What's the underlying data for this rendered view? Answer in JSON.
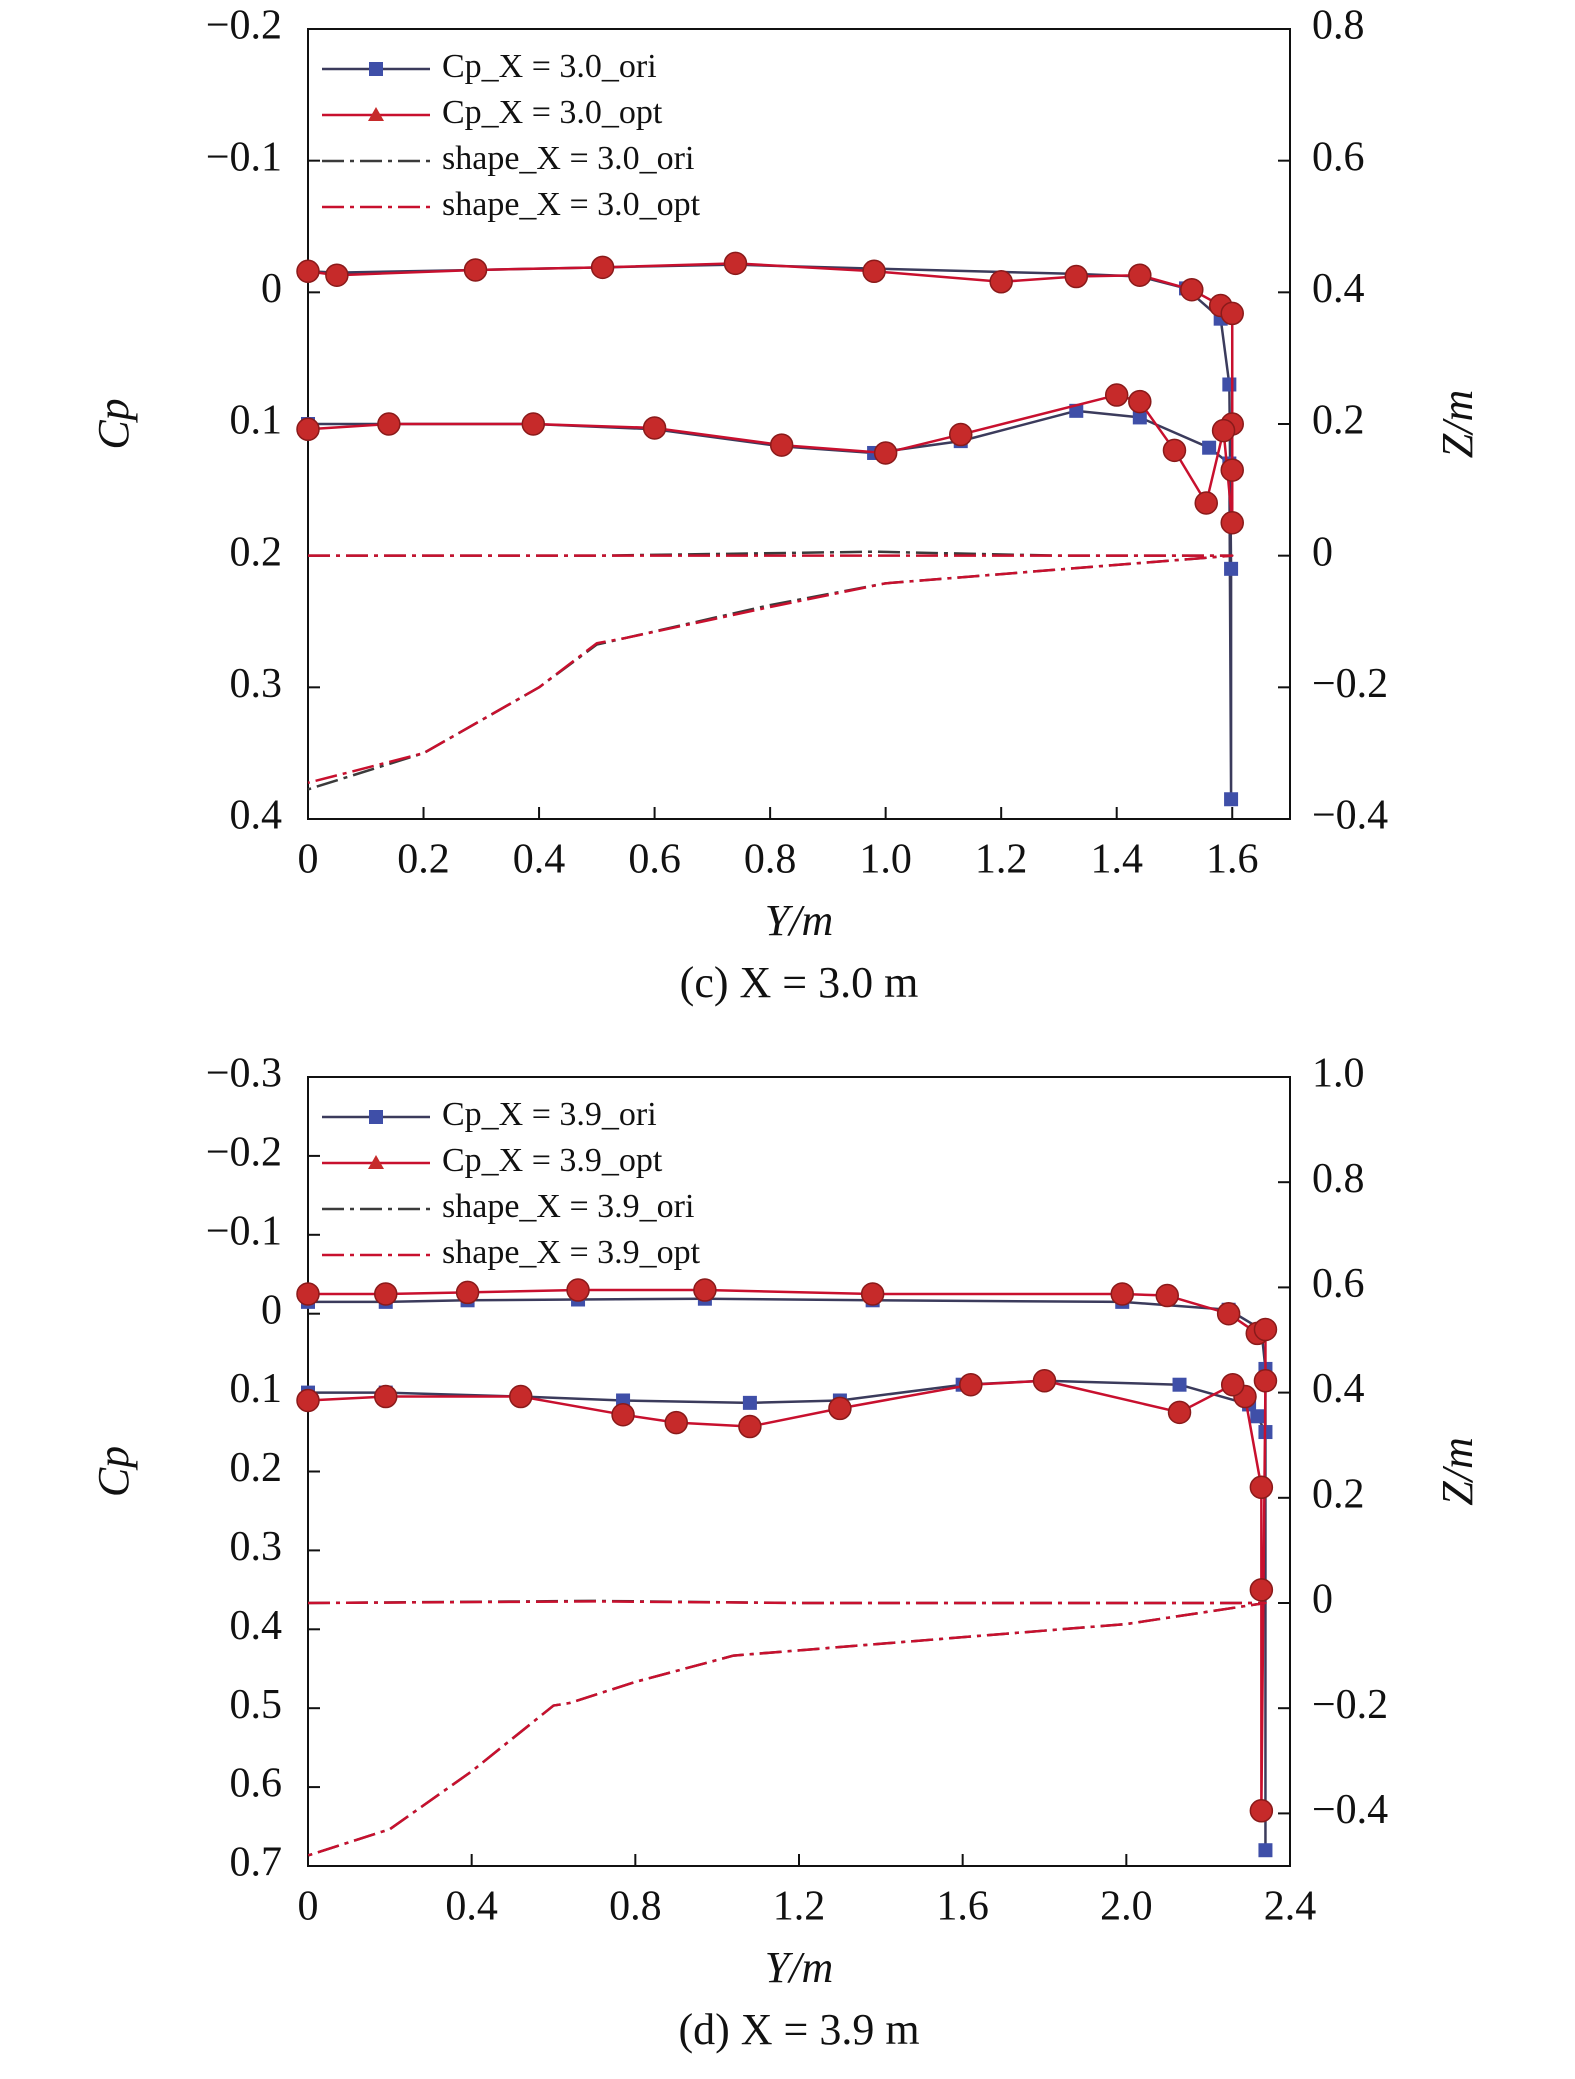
{
  "chart_data": [
    {
      "type": "line",
      "title": "(c) X = 3.0 m",
      "xlabel": "Y/m",
      "ylabel": "Cp",
      "y2label": "Z/m",
      "xlim": [
        0,
        1.7
      ],
      "xticks": [
        0,
        0.2,
        0.4,
        0.6,
        0.8,
        {
          "value": 1,
          "label": "1.0"
        },
        1.2,
        1.4,
        1.6
      ],
      "ylim": [
        -0.2,
        0.4
      ],
      "y_inverted": true,
      "yticks": [
        {
          "value": -0.2,
          "label": "−0.2"
        },
        {
          "value": -0.1,
          "label": "−0.1"
        },
        0,
        0.1,
        0.2,
        0.3,
        0.4
      ],
      "y2lim": [
        -0.4,
        0.8
      ],
      "y2ticks": [
        {
          "value": -0.4,
          "label": "−0.4"
        },
        {
          "value": -0.2,
          "label": "−0.2"
        },
        0,
        0.2,
        0.4,
        0.6,
        0.8
      ],
      "legend": "upper left",
      "series": [
        {
          "name": "Cp_X = 3.0_ori",
          "color": "#3b3b5c",
          "marker": "square",
          "marker_color": "#3f4fa8",
          "x": [
            0,
            0.05,
            0.29,
            0.51,
            0.74,
            0.98,
            1.33,
            1.44,
            1.52,
            1.58,
            1.595,
            1.598,
            1.598,
            1.595,
            1.56,
            1.44,
            1.33,
            1.13,
            0.98,
            0.82,
            0.6,
            0.39,
            0.14,
            0
          ],
          "values": [
            -0.016,
            -0.015,
            -0.017,
            -0.019,
            -0.021,
            -0.018,
            -0.014,
            -0.012,
            -0.003,
            0.02,
            0.07,
            0.21,
            0.385,
            0.13,
            0.118,
            0.095,
            0.09,
            0.113,
            0.122,
            0.117,
            0.104,
            0.1,
            0.1,
            0.1
          ]
        },
        {
          "name": "Cp_X = 3.0_opt",
          "color": "#c8102e",
          "marker": "circle",
          "marker_color": "#c62a2a",
          "x": [
            0,
            0.05,
            0.29,
            0.51,
            0.74,
            0.98,
            1.2,
            1.33,
            1.44,
            1.53,
            1.58,
            1.6,
            1.6,
            1.6,
            1.6,
            1.585,
            1.555,
            1.5,
            1.44,
            1.4,
            1.13,
            1.0,
            0.82,
            0.6,
            0.39,
            0.14,
            0
          ],
          "values": [
            -0.016,
            -0.013,
            -0.017,
            -0.019,
            -0.022,
            -0.016,
            -0.008,
            -0.012,
            -0.013,
            -0.002,
            0.01,
            0.016,
            0.1,
            0.135,
            0.175,
            0.105,
            0.16,
            0.12,
            0.083,
            0.078,
            0.108,
            0.122,
            0.116,
            0.103,
            0.1,
            0.1,
            0.104
          ]
        },
        {
          "name": "shape_X = 3.0_ori",
          "color": "#3b3b3b",
          "axis": "y2",
          "dash": "dashdot",
          "x": [
            0,
            0.5,
            0.98,
            1.3,
            1.6,
            1.0,
            0.8,
            0.55,
            0.5,
            0.4,
            0.2,
            0
          ],
          "values": [
            0,
            0,
            0.006,
            0,
            0,
            -0.042,
            -0.075,
            -0.125,
            -0.135,
            -0.2,
            -0.3,
            -0.355
          ]
        },
        {
          "name": "shape_X = 3.0_opt",
          "color": "#c8102e",
          "axis": "y2",
          "dash": "dashdot",
          "x": [
            0,
            0.5,
            1.0,
            1.6,
            1.0,
            0.8,
            0.55,
            0.5,
            0.4,
            0.2,
            0
          ],
          "values": [
            0,
            0,
            0,
            0,
            -0.042,
            -0.078,
            -0.125,
            -0.133,
            -0.2,
            -0.3,
            -0.345
          ]
        }
      ]
    },
    {
      "type": "line",
      "title": "(d) X = 3.9 m",
      "xlabel": "Y/m",
      "ylabel": "Cp",
      "y2label": "Z/m",
      "xlim": [
        0,
        2.4
      ],
      "xticks": [
        0,
        0.4,
        0.8,
        1.2,
        1.6,
        {
          "value": 2,
          "label": "2.0"
        },
        2.4
      ],
      "ylim": [
        -0.3,
        0.7
      ],
      "y_inverted": true,
      "yticks": [
        {
          "value": -0.3,
          "label": "−0.3"
        },
        {
          "value": -0.2,
          "label": "−0.2"
        },
        {
          "value": -0.1,
          "label": "−0.1"
        },
        0,
        0.1,
        0.2,
        0.3,
        0.4,
        0.5,
        0.6,
        0.7
      ],
      "y2lim": [
        -0.5,
        1.0
      ],
      "y2ticks": [
        {
          "value": -0.4,
          "label": "−0.4"
        },
        {
          "value": -0.2,
          "label": "−0.2"
        },
        0,
        0.2,
        0.4,
        0.6,
        0.8,
        {
          "value": 1,
          "label": "1.0"
        }
      ],
      "legend": "upper left",
      "series": [
        {
          "name": "Cp_X = 3.9_ori",
          "color": "#3b3b5c",
          "marker": "square",
          "marker_color": "#3f4fa8",
          "x": [
            0,
            0.19,
            0.39,
            0.66,
            0.97,
            1.38,
            1.99,
            2.25,
            2.33,
            2.34,
            2.34,
            2.34,
            2.32,
            2.3,
            2.13,
            1.8,
            1.6,
            1.3,
            1.08,
            0.77,
            0.52,
            0.19,
            0
          ],
          "values": [
            -0.015,
            -0.015,
            -0.017,
            -0.018,
            -0.019,
            -0.017,
            -0.015,
            -0.005,
            0.02,
            0.07,
            0.68,
            0.15,
            0.13,
            0.115,
            0.09,
            0.085,
            0.09,
            0.11,
            0.113,
            0.11,
            0.105,
            0.1,
            0.1
          ]
        },
        {
          "name": "Cp_X = 3.9_opt",
          "color": "#c8102e",
          "marker": "circle",
          "marker_color": "#c62a2a",
          "x": [
            0,
            0.19,
            0.39,
            0.66,
            0.97,
            1.38,
            1.99,
            2.1,
            2.25,
            2.32,
            2.34,
            2.34,
            2.33,
            2.33,
            2.33,
            2.29,
            2.26,
            2.13,
            1.8,
            1.62,
            1.3,
            1.08,
            0.9,
            0.77,
            0.52,
            0.19,
            0
          ],
          "values": [
            -0.025,
            -0.025,
            -0.027,
            -0.03,
            -0.03,
            -0.025,
            -0.025,
            -0.023,
            0,
            0.025,
            0.02,
            0.085,
            0.63,
            0.35,
            0.22,
            0.105,
            0.09,
            0.125,
            0.085,
            0.09,
            0.12,
            0.143,
            0.138,
            0.128,
            0.105,
            0.105,
            0.11
          ]
        },
        {
          "name": "shape_X = 3.9_ori",
          "color": "#3b3b3b",
          "axis": "y2",
          "dash": "dashdot",
          "x": [
            0,
            0.7,
            1.2,
            2.34,
            2.0,
            1.04,
            0.8,
            0.64,
            0.6,
            0.4,
            0.2,
            0
          ],
          "values": [
            0,
            0.004,
            0,
            0,
            -0.04,
            -0.1,
            -0.15,
            -0.19,
            -0.195,
            -0.32,
            -0.43,
            -0.48
          ]
        },
        {
          "name": "shape_X = 3.9_opt",
          "color": "#c8102e",
          "axis": "y2",
          "dash": "dashdot",
          "x": [
            0,
            0.7,
            1.2,
            2.34,
            2.0,
            1.04,
            0.8,
            0.64,
            0.6,
            0.4,
            0.2,
            0
          ],
          "values": [
            0,
            0.003,
            0,
            0,
            -0.04,
            -0.1,
            -0.15,
            -0.19,
            -0.195,
            -0.32,
            -0.43,
            -0.48
          ]
        }
      ]
    }
  ]
}
